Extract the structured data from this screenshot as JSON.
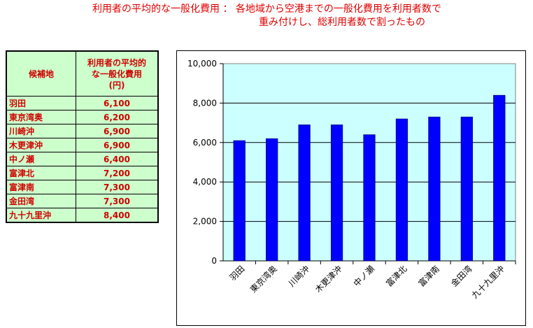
{
  "header": {
    "title_line1": "利用者の平均的な一般化費用 ： 各地域から空港までの一般化費用を利用者数で",
    "title_line2": "重み付けし、総利用者数で割ったもの"
  },
  "table": {
    "col_name": "候補地",
    "col_value_line1": "利用者の平均的",
    "col_value_line2": "な一般化費用",
    "col_value_unit": "(円)",
    "rows": [
      {
        "name": "羽田",
        "value": "6,100"
      },
      {
        "name": "東京湾奥",
        "value": "6,200"
      },
      {
        "name": "川崎沖",
        "value": "6,900"
      },
      {
        "name": "木更津沖",
        "value": "6,900"
      },
      {
        "name": "中ノ瀬",
        "value": "6,400"
      },
      {
        "name": "富津北",
        "value": "7,200"
      },
      {
        "name": "富津南",
        "value": "7,300"
      },
      {
        "name": "金田湾",
        "value": "7,300"
      },
      {
        "name": "九十九里沖",
        "value": "8,400"
      }
    ]
  },
  "chart_data": {
    "type": "bar",
    "categories": [
      "羽田",
      "東京湾奥",
      "川崎沖",
      "木更津沖",
      "中ノ瀬",
      "富津北",
      "富津南",
      "金田湾",
      "九十九里沖"
    ],
    "values": [
      6100,
      6200,
      6900,
      6900,
      6400,
      7200,
      7300,
      7300,
      8400
    ],
    "ylim": [
      0,
      10000
    ],
    "yticks": [
      "0",
      "2,000",
      "4,000",
      "6,000",
      "8,000",
      "10,000"
    ],
    "grid": true,
    "bar_color": "#0000ff",
    "plot_bg": "#ccffff"
  }
}
